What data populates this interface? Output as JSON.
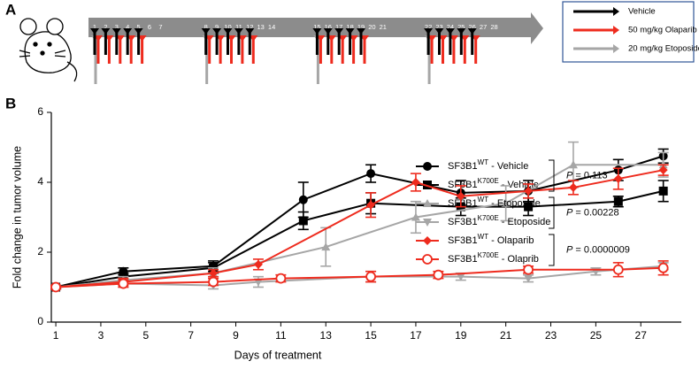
{
  "panel_labels": [
    "A",
    "B"
  ],
  "schedule": {
    "days": [
      1,
      2,
      3,
      4,
      5,
      6,
      7,
      8,
      9,
      10,
      11,
      12,
      13,
      14,
      15,
      16,
      17,
      18,
      19,
      20,
      21,
      22,
      23,
      24,
      25,
      26,
      27,
      28
    ],
    "dose_days": [
      1,
      2,
      3,
      4,
      5,
      8,
      9,
      10,
      11,
      12,
      15,
      16,
      17,
      18,
      19,
      22,
      23,
      24,
      25,
      26
    ],
    "etoposide_days": [
      1,
      8,
      15,
      22
    ]
  },
  "legend_a": [
    {
      "label": "Vehicle",
      "color": "#000000"
    },
    {
      "label": "50 mg/kg Olaparib",
      "color": "#ee2b1e"
    },
    {
      "label": "20 mg/kg Etoposide",
      "color": "#a6a6a6"
    }
  ],
  "chart_data": {
    "type": "line",
    "x_label": "Days of treatment",
    "y_label": "Fold change in tumor volume",
    "xlim": [
      0.8,
      28.8
    ],
    "xticks": [
      1,
      3,
      5,
      7,
      9,
      11,
      13,
      15,
      17,
      19,
      21,
      23,
      25,
      27
    ],
    "ylim": [
      0,
      6
    ],
    "yticks": [
      0,
      2,
      4,
      6
    ],
    "series": [
      {
        "name": [
          "SF3B1",
          "WT",
          " - Vehicle"
        ],
        "color": "#000000",
        "marker": "circle",
        "x": [
          1,
          4,
          8,
          12,
          15,
          19,
          22,
          26,
          28
        ],
        "values": [
          1.0,
          1.45,
          1.6,
          3.5,
          4.25,
          3.7,
          3.75,
          4.35,
          4.75
        ],
        "errors": [
          0.05,
          0.1,
          0.15,
          0.5,
          0.25,
          0.35,
          0.3,
          0.3,
          0.2
        ]
      },
      {
        "name": [
          "SF3B1",
          "K700E",
          " - Vehicle"
        ],
        "color": "#000000",
        "marker": "square",
        "x": [
          1,
          4,
          8,
          12,
          15,
          19,
          22,
          26,
          28
        ],
        "values": [
          1.0,
          1.3,
          1.55,
          2.9,
          3.4,
          3.3,
          3.3,
          3.45,
          3.75
        ],
        "errors": [
          0.05,
          0.1,
          0.15,
          0.25,
          0.3,
          0.25,
          0.25,
          0.15,
          0.3
        ]
      },
      {
        "name": [
          "SF3B1",
          "WT",
          " - Etoposide"
        ],
        "color": "#a6a6a6",
        "marker": "triangle",
        "x": [
          1,
          4,
          8,
          13,
          17,
          21,
          24,
          28
        ],
        "values": [
          1.0,
          1.2,
          1.4,
          2.15,
          3.0,
          3.4,
          4.5,
          4.5
        ],
        "errors": [
          0.05,
          0.1,
          0.15,
          0.55,
          0.45,
          0.5,
          0.65,
          0.35
        ]
      },
      {
        "name": [
          "SF3B1",
          "K700E",
          " - Etoposide"
        ],
        "color": "#a6a6a6",
        "marker": "triangle-down",
        "x": [
          1,
          4,
          8,
          10,
          15,
          19,
          22,
          25,
          28
        ],
        "values": [
          1.0,
          1.1,
          1.05,
          1.15,
          1.3,
          1.3,
          1.25,
          1.45,
          1.6
        ],
        "errors": [
          0.05,
          0.1,
          0.1,
          0.15,
          0.15,
          0.1,
          0.1,
          0.1,
          0.1
        ]
      },
      {
        "name": [
          "SF3B1",
          "WT",
          " - Olaparib"
        ],
        "color": "#ee2b1e",
        "marker": "diamond",
        "x": [
          1,
          4,
          8,
          10,
          15,
          17,
          19,
          22,
          24,
          26,
          28
        ],
        "values": [
          1.0,
          1.15,
          1.4,
          1.65,
          3.35,
          4.0,
          3.6,
          3.75,
          3.85,
          4.1,
          4.35
        ],
        "errors": [
          0.05,
          0.1,
          0.1,
          0.15,
          0.35,
          0.25,
          0.3,
          0.2,
          0.2,
          0.3,
          0.15
        ]
      },
      {
        "name": [
          "SF3B1",
          "K700E",
          " - Olaprib"
        ],
        "color": "#ee2b1e",
        "marker": "circle-open",
        "x": [
          1,
          4,
          8,
          11,
          15,
          18,
          22,
          26,
          28
        ],
        "values": [
          1.0,
          1.1,
          1.15,
          1.25,
          1.3,
          1.35,
          1.5,
          1.5,
          1.55
        ],
        "errors": [
          0.05,
          0.1,
          0.1,
          0.1,
          0.15,
          0.1,
          0.1,
          0.2,
          0.2
        ]
      }
    ],
    "p_annotations": [
      {
        "symbol": "P",
        "text": " = 0.113"
      },
      {
        "symbol": "P",
        "text": " = 0.00228"
      },
      {
        "symbol": "P",
        "text": " = 0.0000009"
      }
    ]
  }
}
